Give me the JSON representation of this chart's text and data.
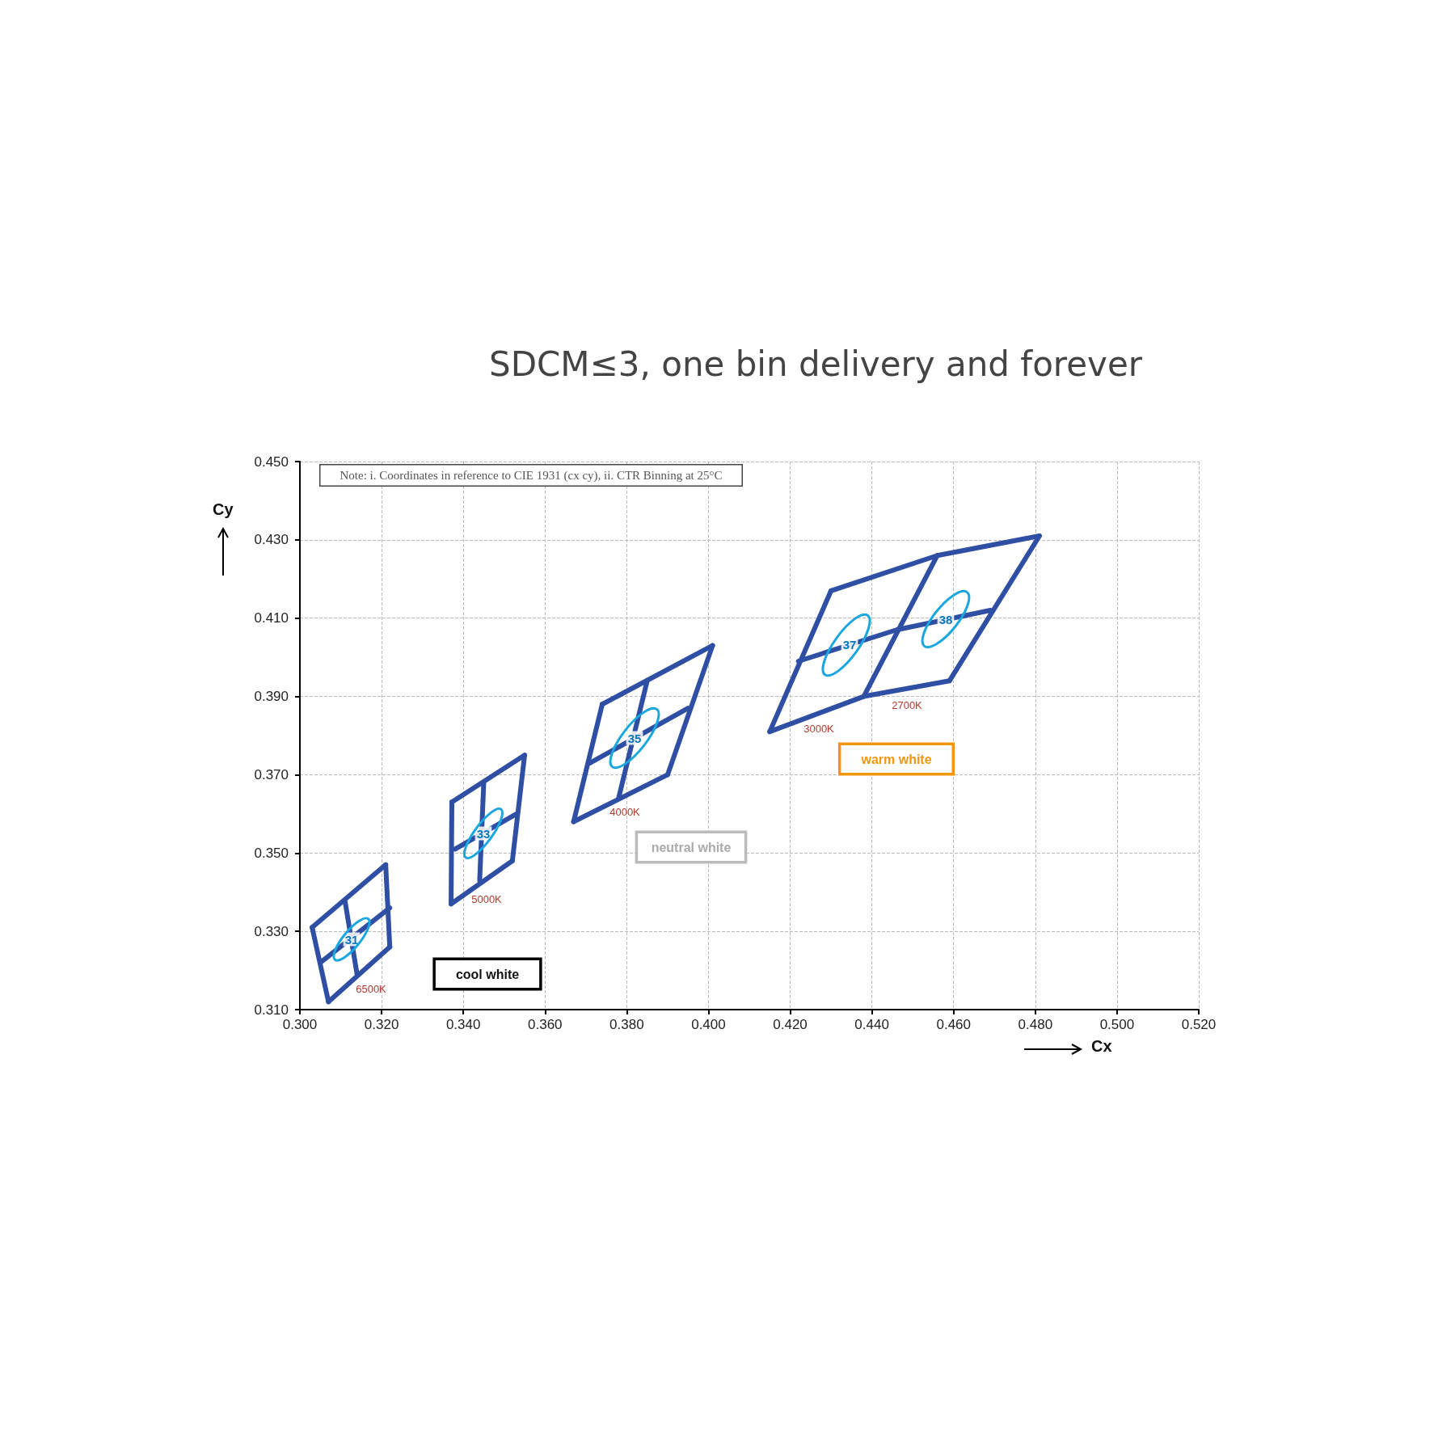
{
  "chart_data": {
    "type": "line",
    "title": "SDCM≤3, one bin delivery and forever",
    "xlabel": "Cx",
    "ylabel": "Cy",
    "xlim": [
      0.3,
      0.52
    ],
    "xticks": [
      {
        "value": 0.3,
        "label": "0.300"
      },
      {
        "value": 0.32,
        "label": "0.320"
      },
      {
        "value": 0.34,
        "label": "0.340"
      },
      {
        "value": 0.36,
        "label": "0.360"
      },
      {
        "value": 0.38,
        "label": "0.380"
      },
      {
        "value": 0.4,
        "label": "0.400"
      },
      {
        "value": 0.42,
        "label": "0.420"
      },
      {
        "value": 0.44,
        "label": "0.440"
      },
      {
        "value": 0.46,
        "label": "0.460"
      },
      {
        "value": 0.48,
        "label": "0.480"
      },
      {
        "value": 0.5,
        "label": "0.500"
      },
      {
        "value": 0.52,
        "label": "0.520"
      }
    ],
    "ylim": [
      0.31,
      0.45
    ],
    "yticks": [
      {
        "value": 0.31,
        "label": "0.310"
      },
      {
        "value": 0.33,
        "label": "0.330"
      },
      {
        "value": 0.35,
        "label": "0.350"
      },
      {
        "value": 0.37,
        "label": "0.370"
      },
      {
        "value": 0.39,
        "label": "0.390"
      },
      {
        "value": 0.41,
        "label": "0.410"
      },
      {
        "value": 0.43,
        "label": "0.430"
      },
      {
        "value": 0.45,
        "label": "0.450"
      }
    ],
    "grid": true,
    "marker": "none",
    "line_style": "solid",
    "series": [
      {
        "color": "#2e4fa3",
        "x": [
          0.303,
          0.321
        ],
        "values": [
          0.331,
          0.347
        ]
      },
      {
        "color": "#2e4fa3",
        "x": [
          0.321,
          0.322
        ],
        "values": [
          0.347,
          0.326
        ]
      },
      {
        "color": "#2e4fa3",
        "x": [
          0.322,
          0.307
        ],
        "values": [
          0.326,
          0.312
        ]
      },
      {
        "color": "#2e4fa3",
        "x": [
          0.307,
          0.303
        ],
        "values": [
          0.312,
          0.331
        ]
      },
      {
        "color": "#2e4fa3",
        "x": [
          0.305,
          0.322
        ],
        "values": [
          0.322,
          0.336
        ]
      },
      {
        "color": "#2e4fa3",
        "x": [
          0.311,
          0.314
        ],
        "values": [
          0.338,
          0.319
        ]
      },
      {
        "color": "#2e4fa3",
        "x": [
          0.3372,
          0.355
        ],
        "values": [
          0.363,
          0.375
        ]
      },
      {
        "color": "#2e4fa3",
        "x": [
          0.355,
          0.352
        ],
        "values": [
          0.375,
          0.348
        ]
      },
      {
        "color": "#2e4fa3",
        "x": [
          0.352,
          0.337
        ],
        "values": [
          0.348,
          0.337
        ]
      },
      {
        "color": "#2e4fa3",
        "x": [
          0.337,
          0.3372
        ],
        "values": [
          0.337,
          0.363
        ]
      },
      {
        "color": "#2e4fa3",
        "x": [
          0.338,
          0.353
        ],
        "values": [
          0.351,
          0.36
        ]
      },
      {
        "color": "#2e4fa3",
        "x": [
          0.345,
          0.344
        ],
        "values": [
          0.368,
          0.343
        ]
      },
      {
        "color": "#2e4fa3",
        "x": [
          0.374,
          0.401
        ],
        "values": [
          0.388,
          0.403
        ]
      },
      {
        "color": "#2e4fa3",
        "x": [
          0.401,
          0.39
        ],
        "values": [
          0.403,
          0.37
        ]
      },
      {
        "color": "#2e4fa3",
        "x": [
          0.39,
          0.367
        ],
        "values": [
          0.37,
          0.358
        ]
      },
      {
        "color": "#2e4fa3",
        "x": [
          0.367,
          0.374
        ],
        "values": [
          0.358,
          0.388
        ]
      },
      {
        "color": "#2e4fa3",
        "x": [
          0.371,
          0.395
        ],
        "values": [
          0.373,
          0.387
        ]
      },
      {
        "color": "#2e4fa3",
        "x": [
          0.385,
          0.378
        ],
        "values": [
          0.394,
          0.364
        ]
      },
      {
        "color": "#2e4fa3",
        "x": [
          0.415,
          0.43
        ],
        "values": [
          0.381,
          0.417
        ]
      },
      {
        "color": "#2e4fa3",
        "x": [
          0.43,
          0.456,
          0.481
        ],
        "values": [
          0.417,
          0.426,
          0.431
        ]
      },
      {
        "color": "#2e4fa3",
        "x": [
          0.481,
          0.459
        ],
        "values": [
          0.431,
          0.394
        ]
      },
      {
        "color": "#2e4fa3",
        "x": [
          0.459,
          0.438,
          0.415
        ],
        "values": [
          0.394,
          0.39,
          0.381
        ]
      },
      {
        "color": "#2e4fa3",
        "x": [
          0.456,
          0.438
        ],
        "values": [
          0.426,
          0.39
        ]
      },
      {
        "color": "#2e4fa3",
        "x": [
          0.422,
          0.446,
          0.469
        ],
        "values": [
          0.399,
          0.407,
          0.412
        ]
      }
    ],
    "annotations": [
      "Note: i. Coordinates in reference to CIE 1931 (cx cy), ii. CTR Binning at 25°C",
      "6500K",
      "5000K",
      "4000K",
      "3000K",
      "2700K",
      "cool white",
      "neutral white",
      "warm white",
      "31",
      "33",
      "35",
      "37",
      "38"
    ]
  }
}
